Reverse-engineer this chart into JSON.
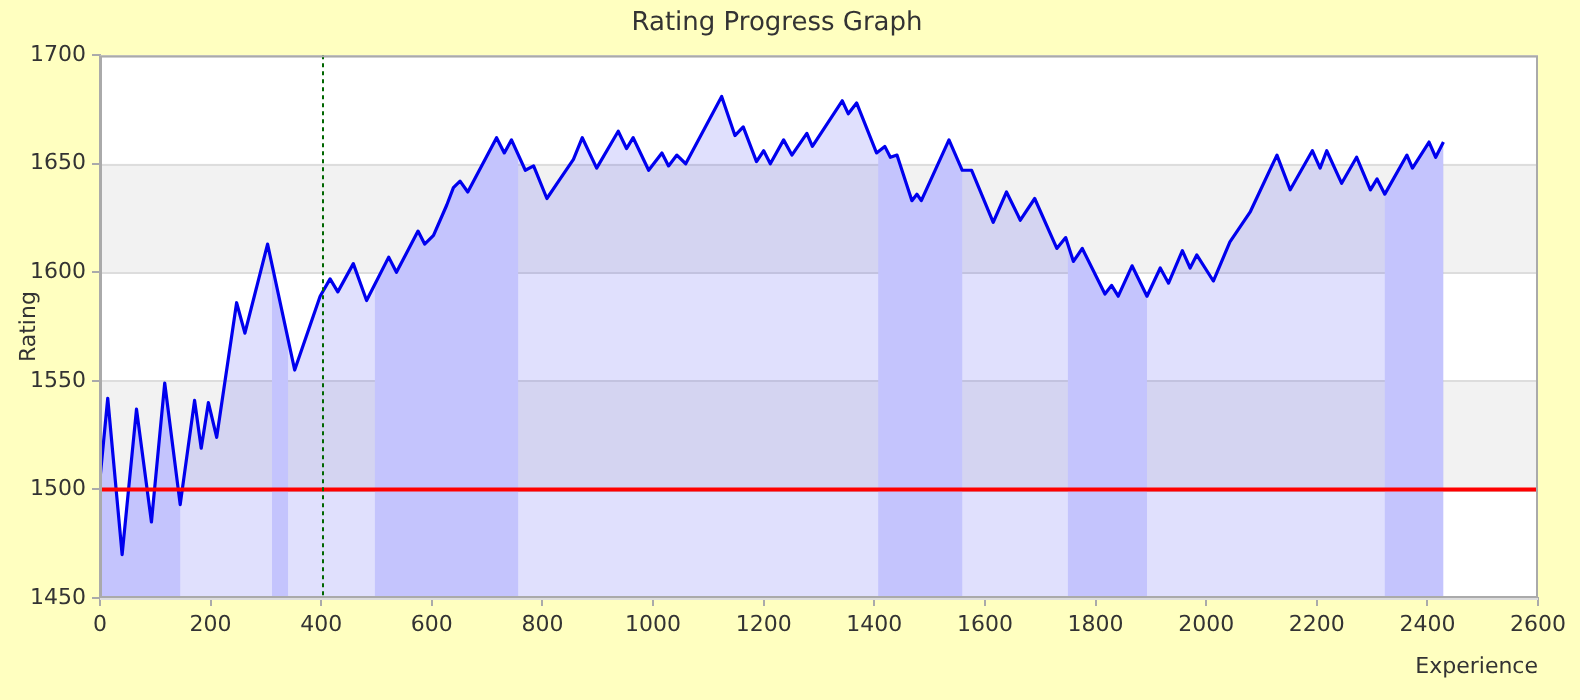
{
  "chart_data": {
    "type": "area",
    "title": "Rating Progress Graph",
    "xlabel": "Experience",
    "ylabel": "Rating",
    "xlim": [
      0,
      2600
    ],
    "xticks": [
      0,
      200,
      400,
      600,
      800,
      1000,
      1200,
      1400,
      1600,
      1800,
      2000,
      2200,
      2400,
      2600
    ],
    "ylim": [
      1450,
      1700
    ],
    "yticks": [
      1450,
      1500,
      1550,
      1600,
      1650,
      1700
    ],
    "grid": "y",
    "legend": false,
    "series": [
      {
        "color": "#0000ee",
        "x": [
          0,
          14,
          40,
          66,
          93,
          117,
          145,
          171,
          183,
          196,
          211,
          247,
          262,
          303,
          352,
          398,
          416,
          430,
          458,
          482,
          522,
          536,
          575,
          587,
          603,
          627,
          639,
          651,
          665,
          717,
          731,
          744,
          769,
          784,
          808,
          832,
          856,
          872,
          898,
          937,
          952,
          964,
          992,
          1016,
          1028,
          1043,
          1059,
          1124,
          1148,
          1163,
          1187,
          1200,
          1212,
          1236,
          1251,
          1278,
          1288,
          1342,
          1353,
          1368,
          1404,
          1419,
          1429,
          1441,
          1468,
          1477,
          1485,
          1535,
          1559,
          1576,
          1615,
          1639,
          1664,
          1690,
          1730,
          1746,
          1760,
          1776,
          1817,
          1829,
          1841,
          1866,
          1893,
          1917,
          1932,
          1957,
          1971,
          1983,
          2013,
          2043,
          2080,
          2128,
          2152,
          2192,
          2206,
          2218,
          2245,
          2272,
          2297,
          2309,
          2323,
          2363,
          2373,
          2403,
          2415,
          2429
        ],
        "values": [
          1505,
          1542,
          1470,
          1537,
          1485,
          1549,
          1493,
          1541,
          1519,
          1540,
          1524,
          1586,
          1572,
          1613,
          1555,
          1589,
          1597,
          1591,
          1604,
          1587,
          1607,
          1600,
          1619,
          1613,
          1617,
          1631,
          1639,
          1642,
          1637,
          1662,
          1655,
          1661,
          1647,
          1649,
          1634,
          1643,
          1652,
          1662,
          1648,
          1665,
          1657,
          1662,
          1647,
          1655,
          1649,
          1654,
          1650,
          1681,
          1663,
          1667,
          1651,
          1656,
          1650,
          1661,
          1654,
          1664,
          1658,
          1679,
          1673,
          1678,
          1655,
          1658,
          1653,
          1654,
          1633,
          1636,
          1633,
          1661,
          1647,
          1647,
          1623,
          1637,
          1624,
          1634,
          1611,
          1616,
          1605,
          1611,
          1590,
          1594,
          1589,
          1603,
          1589,
          1602,
          1595,
          1610,
          1602,
          1608,
          1596,
          1614,
          1628,
          1654,
          1638,
          1656,
          1648,
          1656,
          1641,
          1653,
          1638,
          1643,
          1636,
          1654,
          1648,
          1660,
          1653,
          1660
        ]
      }
    ],
    "ref_lines": [
      {
        "axis": "y",
        "value": 1500,
        "color": "#ff0000",
        "line_style": "solid"
      },
      {
        "axis": "x",
        "value": 400,
        "color": "#006600",
        "line_style": "dotted"
      }
    ],
    "bands": [
      {
        "axis": "y",
        "from": 1500,
        "to": 1550,
        "color": "#f2f2f2"
      },
      {
        "axis": "y",
        "from": 1600,
        "to": 1650,
        "color": "#f2f2f2"
      },
      {
        "axis": "x",
        "from": 0,
        "to": 145,
        "color": "#e0e0ff"
      },
      {
        "axis": "x",
        "from": 311,
        "to": 340,
        "color": "#e0e0ff"
      },
      {
        "axis": "x",
        "from": 497,
        "to": 756,
        "color": "#e0e0ff"
      },
      {
        "axis": "x",
        "from": 1407,
        "to": 1559,
        "color": "#e0e0ff"
      },
      {
        "axis": "x",
        "from": 1750,
        "to": 1893,
        "color": "#e0e0ff"
      },
      {
        "axis": "x",
        "from": 2323,
        "to": 2429,
        "color": "#e0e0ff"
      }
    ]
  }
}
